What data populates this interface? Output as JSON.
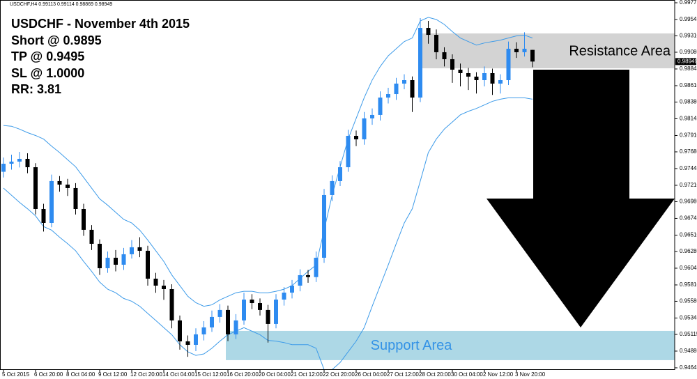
{
  "chart_data": {
    "type": "candlestick",
    "header": "USDCHF,H4  0.99113 0.99114 0.98869 0.98949",
    "title": "USDCHF - November 4th 2015",
    "annotations": [
      "Short @ 0.9895",
      "TP @ 0.9495",
      "SL @ 1.0000",
      "RR: 3.81"
    ],
    "last_price_label": "0.98949",
    "up_color": "#2e8bf0",
    "down_color": "#000000",
    "categories": [
      "5 Oct 2015",
      null,
      null,
      null,
      "6 Oct 20:00",
      null,
      null,
      null,
      "8 Oct 04:00",
      null,
      null,
      null,
      "9 Oct 12:00",
      null,
      null,
      null,
      "12 Oct 20:00",
      null,
      null,
      null,
      "14 Oct 04:00",
      null,
      null,
      null,
      "15 Oct 12:00",
      null,
      null,
      null,
      "16 Oct 20:00",
      null,
      null,
      null,
      "20 Oct 04:00",
      null,
      null,
      null,
      "21 Oct 12:00",
      null,
      null,
      null,
      "22 Oct 20:00",
      null,
      null,
      null,
      "26 Oct 04:00",
      null,
      null,
      null,
      "27 Oct 12:00",
      null,
      null,
      null,
      "28 Oct 20:00",
      null,
      null,
      null,
      "30 Oct 04:00",
      null,
      null,
      null,
      "2 Nov 12:00",
      null,
      null,
      null,
      "3 Nov 20:00",
      null,
      null
    ],
    "open": [
      0.974,
      0.97513,
      0.97543,
      0.97582,
      0.97464,
      0.96877,
      0.96681,
      0.97269,
      0.9722,
      0.97171,
      0.96877,
      0.96584,
      0.96388,
      0.96045,
      0.96192,
      0.96094,
      0.96241,
      0.96339,
      0.9629,
      0.95898,
      0.958,
      0.95751,
      0.95311,
      0.95017,
      0.94968,
      0.95115,
      0.95213,
      0.9536,
      0.95458,
      0.95115,
      0.95311,
      0.95604,
      0.95555,
      0.95458,
      0.95262,
      0.95604,
      0.95702,
      0.958,
      0.95947,
      0.9592,
      0.96192,
      0.97073,
      0.97269,
      0.97464,
      0.97905,
      0.97856,
      0.9815,
      0.98199,
      0.98443,
      0.98492,
      0.98639,
      0.98688,
      0.98443,
      0.99422,
      0.99324,
      0.9908,
      0.98982,
      0.98835,
      0.98786,
      0.98737,
      0.98688,
      0.98786,
      0.98639,
      0.98688,
      0.99129,
      0.9908,
      0.99113
    ],
    "high": [
      0.976,
      0.9764,
      0.9768,
      0.9766,
      0.9752,
      0.9695,
      0.9736,
      0.9734,
      0.973,
      0.9724,
      0.9695,
      0.9665,
      0.9645,
      0.9628,
      0.963,
      0.9633,
      0.9644,
      0.9648,
      0.9636,
      0.9598,
      0.9588,
      0.9582,
      0.9538,
      0.951,
      0.952,
      0.953,
      0.9545,
      0.9554,
      0.9552,
      0.954,
      0.957,
      0.9568,
      0.9562,
      0.9553,
      0.9568,
      0.9578,
      0.9588,
      0.9603,
      0.9602,
      0.9628,
      0.9716,
      0.9735,
      0.9755,
      0.9799,
      0.9798,
      0.9824,
      0.9829,
      0.9853,
      0.9858,
      0.9872,
      0.9877,
      0.9874,
      0.9956,
      0.9952,
      0.994,
      0.9915,
      0.9905,
      0.9892,
      0.9886,
      0.988,
      0.9888,
      0.9885,
      0.9877,
      0.9923,
      0.9922,
      0.9936,
      0.99114
    ],
    "low": [
      0.9732,
      0.9743,
      0.9746,
      0.9738,
      0.968,
      0.9656,
      0.9662,
      0.9712,
      0.9706,
      0.968,
      0.965,
      0.963,
      0.9595,
      0.9598,
      0.96,
      0.9602,
      0.9618,
      0.962,
      0.958,
      0.957,
      0.956,
      0.952,
      0.949,
      0.948,
      0.9488,
      0.9503,
      0.9515,
      0.9528,
      0.9502,
      0.9505,
      0.9525,
      0.9547,
      0.9538,
      0.95,
      0.952,
      0.9552,
      0.9562,
      0.9572,
      0.9584,
      0.9585,
      0.9612,
      0.9699,
      0.972,
      0.974,
      0.9776,
      0.9778,
      0.9806,
      0.9812,
      0.9836,
      0.9841,
      0.9856,
      0.9824,
      0.9838,
      0.992,
      0.9898,
      0.9888,
      0.9865,
      0.986,
      0.9855,
      0.985,
      0.986,
      0.9848,
      0.985,
      0.9862,
      0.99,
      0.9902,
      0.98869
    ],
    "close": [
      0.97513,
      0.97543,
      0.97582,
      0.97464,
      0.96877,
      0.96681,
      0.97269,
      0.9722,
      0.97171,
      0.96877,
      0.96584,
      0.96388,
      0.96045,
      0.96192,
      0.96094,
      0.96241,
      0.96339,
      0.9629,
      0.95898,
      0.958,
      0.95751,
      0.95311,
      0.95017,
      0.94968,
      0.95115,
      0.95213,
      0.9536,
      0.95458,
      0.95115,
      0.95311,
      0.95604,
      0.95555,
      0.95458,
      0.95262,
      0.95604,
      0.95702,
      0.958,
      0.95947,
      0.9592,
      0.96192,
      0.97073,
      0.97269,
      0.97464,
      0.97905,
      0.97856,
      0.9815,
      0.98199,
      0.98443,
      0.98492,
      0.98639,
      0.98688,
      0.98443,
      0.99422,
      0.99324,
      0.9908,
      0.98982,
      0.98835,
      0.98786,
      0.98737,
      0.98688,
      0.98786,
      0.98639,
      0.98688,
      0.99129,
      0.9908,
      0.99129,
      0.98949
    ],
    "bands": [
      {
        "color": "#3d9be9",
        "values": [
          0.9805,
          0.9804,
          0.98,
          0.9795,
          0.9791,
          0.9786,
          0.9776,
          0.9767,
          0.9757,
          0.9747,
          0.9732,
          0.9717,
          0.9702,
          0.9693,
          0.9683,
          0.9673,
          0.9668,
          0.9658,
          0.9644,
          0.9629,
          0.9614,
          0.9595,
          0.958,
          0.9565,
          0.9556,
          0.9551,
          0.9553,
          0.956,
          0.9565,
          0.957,
          0.9572,
          0.9572,
          0.957,
          0.957,
          0.9572,
          0.9575,
          0.958,
          0.959,
          0.96,
          0.9609,
          0.9658,
          0.9707,
          0.9747,
          0.9786,
          0.9815,
          0.9844,
          0.9869,
          0.9888,
          0.9903,
          0.9913,
          0.9923,
          0.9928,
          0.9952,
          0.9957,
          0.9954,
          0.9947,
          0.9937,
          0.9928,
          0.9923,
          0.9918,
          0.9921,
          0.9923,
          0.9925,
          0.9928,
          0.9931,
          0.9932,
          0.9928
        ]
      },
      {
        "color": "#3d9be9",
        "values": [
          0.9717,
          0.9707,
          0.9697,
          0.9688,
          0.9678,
          0.9663,
          0.9658,
          0.9648,
          0.9639,
          0.9629,
          0.9614,
          0.96,
          0.9585,
          0.9575,
          0.957,
          0.9562,
          0.9558,
          0.9551,
          0.9541,
          0.9531,
          0.9521,
          0.9511,
          0.9497,
          0.9487,
          0.9482,
          0.9484,
          0.9492,
          0.9502,
          0.9511,
          0.9516,
          0.9521,
          0.9516,
          0.9511,
          0.9503,
          0.9502,
          0.95,
          0.9497,
          0.9497,
          0.9497,
          0.9492,
          0.9462,
          0.9462,
          0.9472,
          0.9487,
          0.9502,
          0.9521,
          0.9551,
          0.958,
          0.9609,
          0.9639,
          0.9668,
          0.9688,
          0.9727,
          0.9767,
          0.9786,
          0.98,
          0.981,
          0.982,
          0.9825,
          0.9829,
          0.9834,
          0.9839,
          0.9842,
          0.9844,
          0.9844,
          0.9844,
          0.9842
        ]
      }
    ],
    "zones": [
      {
        "label": "Resistance Area",
        "range": [
          0.98854,
          0.99344
        ],
        "start": "28 Oct 20:00",
        "color": "#d3d3d3",
        "label_color": "#000000"
      },
      {
        "label": "Support Area",
        "range": [
          0.94753,
          0.95164
        ],
        "start": "16 Oct 20:00",
        "color": "#add8e6",
        "label_color": "#3392e6"
      }
    ],
    "ylim": [
      0.94625,
      0.99814
    ],
    "yticks": [
      0.99775,
      0.9954,
      {
        "value": 0.9931,
        "label": "0.99310"
      },
      {
        "value": 0.9908,
        "label": "0.99080"
      },
      0.98845,
      {
        "value": 0.9861,
        "label": "0.98610"
      },
      {
        "value": 0.9838,
        "label": "0.98380"
      },
      0.98145,
      {
        "value": 0.9791,
        "label": "0.97910"
      },
      {
        "value": 0.9768,
        "label": "0.97680"
      },
      0.97445,
      {
        "value": 0.9721,
        "label": "0.97210"
      },
      {
        "value": 0.9698,
        "label": "0.96980"
      },
      0.96745,
      {
        "value": 0.9651,
        "label": "0.96510"
      },
      {
        "value": 0.9628,
        "label": "0.96280"
      },
      0.96045,
      {
        "value": 0.9581,
        "label": "0.95810"
      },
      {
        "value": 0.9558,
        "label": "0.95580"
      },
      0.95345,
      0.95115,
      {
        "value": 0.9488,
        "label": "0.94880"
      },
      0.94645
    ]
  }
}
